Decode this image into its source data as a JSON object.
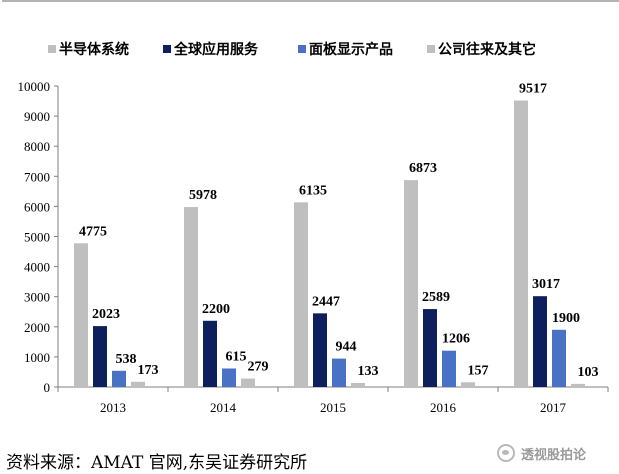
{
  "chart_data": {
    "type": "bar",
    "categories": [
      "2013",
      "2014",
      "2015",
      "2016",
      "2017"
    ],
    "series": [
      {
        "name": "半导体系统",
        "color": "#bfbfbf",
        "values": [
          4775,
          5978,
          6135,
          6873,
          9517
        ]
      },
      {
        "name": "全球应用服务",
        "color": "#0d1f5c",
        "values": [
          2023,
          2200,
          2447,
          2589,
          3017
        ]
      },
      {
        "name": "面板显示产品",
        "color": "#4a72c4",
        "values": [
          538,
          615,
          944,
          1206,
          1900
        ]
      },
      {
        "name": "公司往来及其它",
        "color": "#bfbfbf",
        "values": [
          173,
          279,
          133,
          157,
          103
        ]
      }
    ],
    "yticks": [
      "0",
      "1000",
      "2000",
      "3000",
      "4000",
      "5000",
      "6000",
      "7000",
      "8000",
      "9000",
      "10000"
    ],
    "ylim": [
      0,
      10000
    ],
    "grid": false,
    "legend_position": "top"
  },
  "source_text": "资料来源：AMAT 官网,东吴证券研究所",
  "watermark_text": "透视股拍论"
}
